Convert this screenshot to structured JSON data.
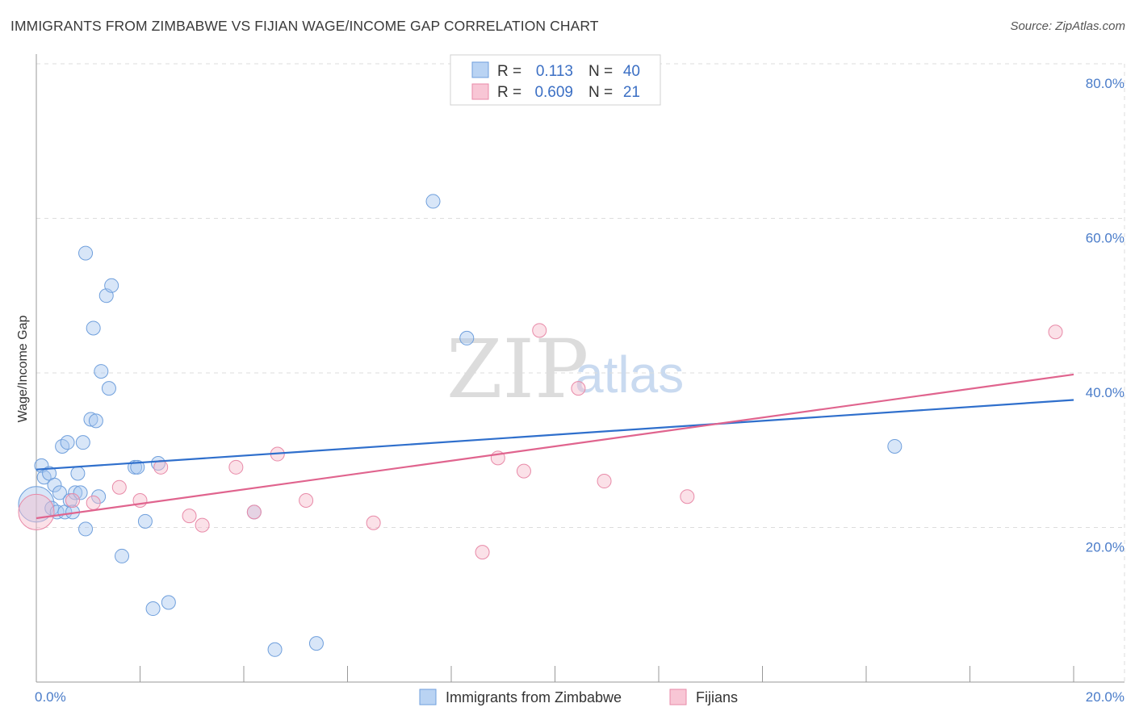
{
  "header": {
    "title": "IMMIGRANTS FROM ZIMBABWE VS FIJIAN WAGE/INCOME GAP CORRELATION CHART",
    "source": "Source: ZipAtlas.com"
  },
  "watermark": {
    "zip": "ZIP",
    "atlas": "atlas"
  },
  "colors": {
    "blue_fill": "#a8c8f0",
    "blue_stroke": "#6f9fdc",
    "blue_line": "#2f6fcc",
    "pink_fill": "#f6bccd",
    "pink_stroke": "#e88aa8",
    "pink_line": "#e0648e",
    "grid": "#dddddd",
    "tick_text": "#4a7cc9"
  },
  "legend": {
    "rows": [
      {
        "r_label": "R =",
        "r_value": "0.113",
        "n_label": "N =",
        "n_value": "40"
      },
      {
        "r_label": "R =",
        "r_value": "0.609",
        "n_label": "N =",
        "n_value": "21"
      }
    ]
  },
  "bottom_legend": [
    {
      "label": "Immigrants from Zimbabwe"
    },
    {
      "label": "Fijians"
    }
  ],
  "chart_data": {
    "type": "scatter",
    "title": "IMMIGRANTS FROM ZIMBABWE VS FIJIAN WAGE/INCOME GAP CORRELATION CHART",
    "xlabel": "",
    "ylabel": "Wage/Income Gap",
    "xlim": [
      0,
      20
    ],
    "ylim": [
      0,
      80
    ],
    "x_tick_labels": [
      "0.0%",
      "20.0%"
    ],
    "y_ticks": [
      20,
      40,
      60,
      80
    ],
    "y_tick_labels": [
      "20.0%",
      "40.0%",
      "60.0%",
      "80.0%"
    ],
    "grid": true,
    "series": [
      {
        "name": "Immigrants from Zimbabwe",
        "r": 0.113,
        "n": 40,
        "trend": {
          "x": [
            0,
            20
          ],
          "y": [
            27.5,
            36.5
          ]
        },
        "points": [
          {
            "x": 0.0,
            "y": 23.0,
            "big": true
          },
          {
            "x": 0.1,
            "y": 28.0
          },
          {
            "x": 0.15,
            "y": 26.5
          },
          {
            "x": 0.25,
            "y": 27.0
          },
          {
            "x": 0.3,
            "y": 22.5
          },
          {
            "x": 0.35,
            "y": 25.5
          },
          {
            "x": 0.4,
            "y": 22.0
          },
          {
            "x": 0.45,
            "y": 24.5
          },
          {
            "x": 0.5,
            "y": 30.5
          },
          {
            "x": 0.55,
            "y": 22.0
          },
          {
            "x": 0.6,
            "y": 31.0
          },
          {
            "x": 0.65,
            "y": 23.5
          },
          {
            "x": 0.7,
            "y": 22.0
          },
          {
            "x": 0.75,
            "y": 24.5
          },
          {
            "x": 0.8,
            "y": 27.0
          },
          {
            "x": 0.85,
            "y": 24.5
          },
          {
            "x": 0.9,
            "y": 31.0
          },
          {
            "x": 0.95,
            "y": 19.8
          },
          {
            "x": 0.95,
            "y": 55.5
          },
          {
            "x": 1.05,
            "y": 34.0
          },
          {
            "x": 1.1,
            "y": 45.8
          },
          {
            "x": 1.15,
            "y": 33.8
          },
          {
            "x": 1.2,
            "y": 24.0
          },
          {
            "x": 1.25,
            "y": 40.2
          },
          {
            "x": 1.35,
            "y": 50.0
          },
          {
            "x": 1.4,
            "y": 38.0
          },
          {
            "x": 1.45,
            "y": 51.3
          },
          {
            "x": 1.65,
            "y": 16.3
          },
          {
            "x": 1.9,
            "y": 27.8
          },
          {
            "x": 1.95,
            "y": 27.8
          },
          {
            "x": 2.1,
            "y": 20.8
          },
          {
            "x": 2.25,
            "y": 9.5
          },
          {
            "x": 2.35,
            "y": 28.3
          },
          {
            "x": 2.55,
            "y": 10.3
          },
          {
            "x": 4.2,
            "y": 22.0
          },
          {
            "x": 4.6,
            "y": 4.2
          },
          {
            "x": 5.4,
            "y": 5.0
          },
          {
            "x": 7.65,
            "y": 62.2
          },
          {
            "x": 8.3,
            "y": 44.5
          },
          {
            "x": 16.55,
            "y": 30.5
          }
        ]
      },
      {
        "name": "Fijians",
        "r": 0.609,
        "n": 21,
        "trend": {
          "x": [
            0,
            20
          ],
          "y": [
            21.2,
            39.8
          ]
        },
        "points": [
          {
            "x": 0.0,
            "y": 22.0,
            "big": true
          },
          {
            "x": 0.7,
            "y": 23.5
          },
          {
            "x": 1.1,
            "y": 23.2
          },
          {
            "x": 1.6,
            "y": 25.2
          },
          {
            "x": 2.0,
            "y": 23.5
          },
          {
            "x": 2.4,
            "y": 27.8
          },
          {
            "x": 2.95,
            "y": 21.5
          },
          {
            "x": 3.2,
            "y": 20.3
          },
          {
            "x": 3.85,
            "y": 27.8
          },
          {
            "x": 4.2,
            "y": 22.0
          },
          {
            "x": 4.65,
            "y": 29.5
          },
          {
            "x": 5.2,
            "y": 23.5
          },
          {
            "x": 6.5,
            "y": 20.6
          },
          {
            "x": 8.6,
            "y": 16.8
          },
          {
            "x": 8.9,
            "y": 29.0
          },
          {
            "x": 9.4,
            "y": 27.3
          },
          {
            "x": 9.7,
            "y": 45.5
          },
          {
            "x": 10.45,
            "y": 38.0
          },
          {
            "x": 10.95,
            "y": 26.0
          },
          {
            "x": 12.55,
            "y": 24.0
          },
          {
            "x": 19.65,
            "y": 45.3
          }
        ]
      }
    ]
  }
}
